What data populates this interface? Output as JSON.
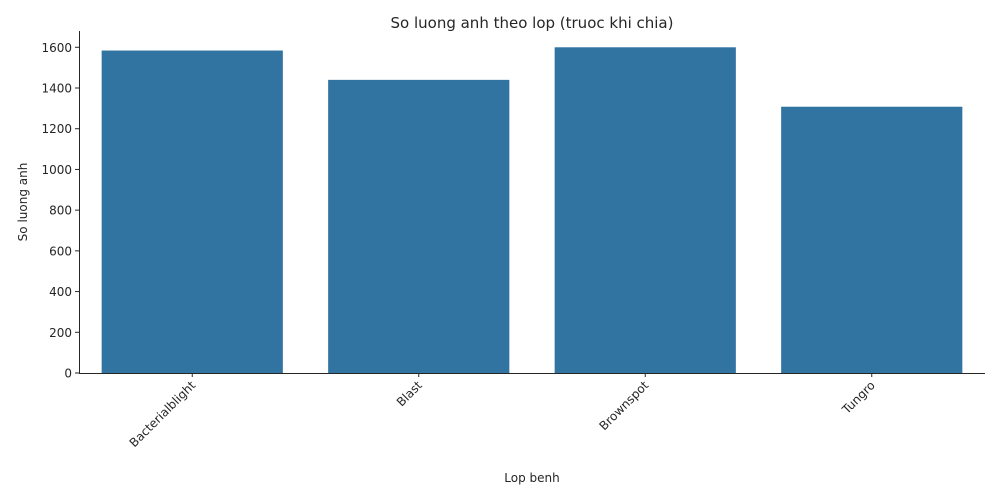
{
  "chart_data": {
    "type": "bar",
    "title": "So luong anh theo lop (truoc khi chia)",
    "xlabel": "Lop benh",
    "ylabel": "So luong anh",
    "categories": [
      "Bacterialblight",
      "Blast",
      "Brownspot",
      "Tungro"
    ],
    "values": [
      1584,
      1440,
      1600,
      1308
    ],
    "ylim": [
      0,
      1680
    ],
    "yticks": [
      0,
      200,
      400,
      600,
      800,
      1000,
      1200,
      1400,
      1600
    ],
    "xtick_rotation": 45,
    "bar_color": "#3274a1",
    "grid": false,
    "legend": "none"
  }
}
